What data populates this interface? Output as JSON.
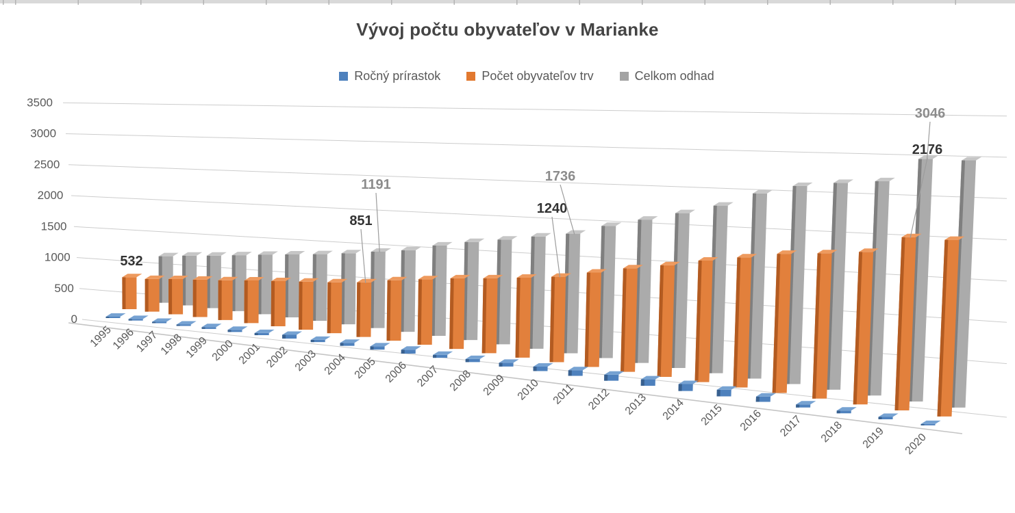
{
  "title": "Vývoj počtu obyvateľov v Marianke",
  "legend": [
    {
      "label": "Ročný prírastok",
      "color": "#4E81BD"
    },
    {
      "label": "Počet obyvateľov trv",
      "color": "#E2792F"
    },
    {
      "label": "Celkom odhad",
      "color": "#A3A3A3"
    }
  ],
  "axis": {
    "tick_color": "#595959",
    "gridline_color": "#CCCCCC",
    "leader_color": "#9C9C9C"
  },
  "chart_data": {
    "type": "bar",
    "style": "3d-perspective-columns",
    "title": "Vývoj počtu obyvateľov v Marianke",
    "categories": [
      "1995",
      "1996",
      "1997",
      "1998",
      "1999",
      "2000",
      "2001",
      "2002",
      "2003",
      "2004",
      "2005",
      "2006",
      "2007",
      "2008",
      "2009",
      "2010",
      "2011",
      "2012",
      "2013",
      "2014",
      "2015",
      "2016",
      "2017",
      "2018",
      "2019",
      "2020"
    ],
    "xlabel": "",
    "ylabel": "",
    "ylim": [
      0,
      3500
    ],
    "y_ticks": [
      0,
      500,
      1000,
      1500,
      2000,
      2500,
      3000,
      3500
    ],
    "grid": true,
    "legend_position": "top",
    "series": [
      {
        "name": "Ročný prírastok",
        "key": "rocny-prirastok",
        "front": "#4E81BD",
        "side": "#38608F",
        "top": "#76A2D2",
        "values": [
          18,
          25,
          22,
          22,
          28,
          35,
          35,
          60,
          35,
          45,
          50,
          60,
          45,
          45,
          55,
          65,
          80,
          85,
          90,
          95,
          90,
          70,
          40,
          35,
          30,
          15
        ],
        "note": "values estimated from bar heights; not labeled in chart"
      },
      {
        "name": "Počet obyvateľov trv",
        "key": "pocet-obyvatelov-trv",
        "front": "#E2803C",
        "side": "#B35B21",
        "top": "#EE9A5E",
        "values": [
          532,
          540,
          580,
          612,
          646,
          689,
          725,
          765,
          803,
          851,
          935,
          1000,
          1065,
          1115,
          1175,
          1240,
          1350,
          1460,
          1550,
          1660,
          1750,
          1840,
          1890,
          1950,
          2176,
          2180
        ],
        "labeled_points": {
          "1995": 532,
          "2004": 851,
          "2010": 1240,
          "2019": 2176
        }
      },
      {
        "name": "Celkom odhad",
        "key": "celkom-odhad",
        "front": "#ABABAB",
        "side": "#7F7F7F",
        "top": "#C6C6C6",
        "values": [
          null,
          770,
          820,
          860,
          910,
          960,
          1010,
          1060,
          1120,
          1191,
          1260,
          1380,
          1480,
          1560,
          1650,
          1736,
          1890,
          2020,
          2150,
          2290,
          2490,
          2620,
          2690,
          2740,
          3046,
          3050
        ],
        "labeled_points": {
          "2004": 1191,
          "2010": 1736,
          "2019": 3046
        }
      }
    ],
    "data_labels": [
      {
        "series": 1,
        "year_index": 0,
        "text": "532",
        "lx": 192,
        "ly": 381,
        "leader": false,
        "tone": "dark"
      },
      {
        "series": 1,
        "year_index": 9,
        "text": "851",
        "lx": 527,
        "ly": 322,
        "leader": true,
        "tone": "dark"
      },
      {
        "series": 2,
        "year_index": 9,
        "text": "1191",
        "lx": 549,
        "ly": 269,
        "leader": true,
        "tone": "gray"
      },
      {
        "series": 1,
        "year_index": 15,
        "text": "1240",
        "lx": 806,
        "ly": 304,
        "leader": true,
        "tone": "dark"
      },
      {
        "series": 2,
        "year_index": 15,
        "text": "1736",
        "lx": 818,
        "ly": 257,
        "leader": true,
        "tone": "gray"
      },
      {
        "series": 1,
        "year_index": 24,
        "text": "2176",
        "lx": 1354,
        "ly": 218,
        "leader": true,
        "tone": "dark"
      },
      {
        "series": 2,
        "year_index": 24,
        "text": "3046",
        "lx": 1358,
        "ly": 165,
        "leader": true,
        "tone": "gray"
      }
    ],
    "label_colors": {
      "dark": "#333333",
      "gray": "#8C8C8C"
    }
  }
}
